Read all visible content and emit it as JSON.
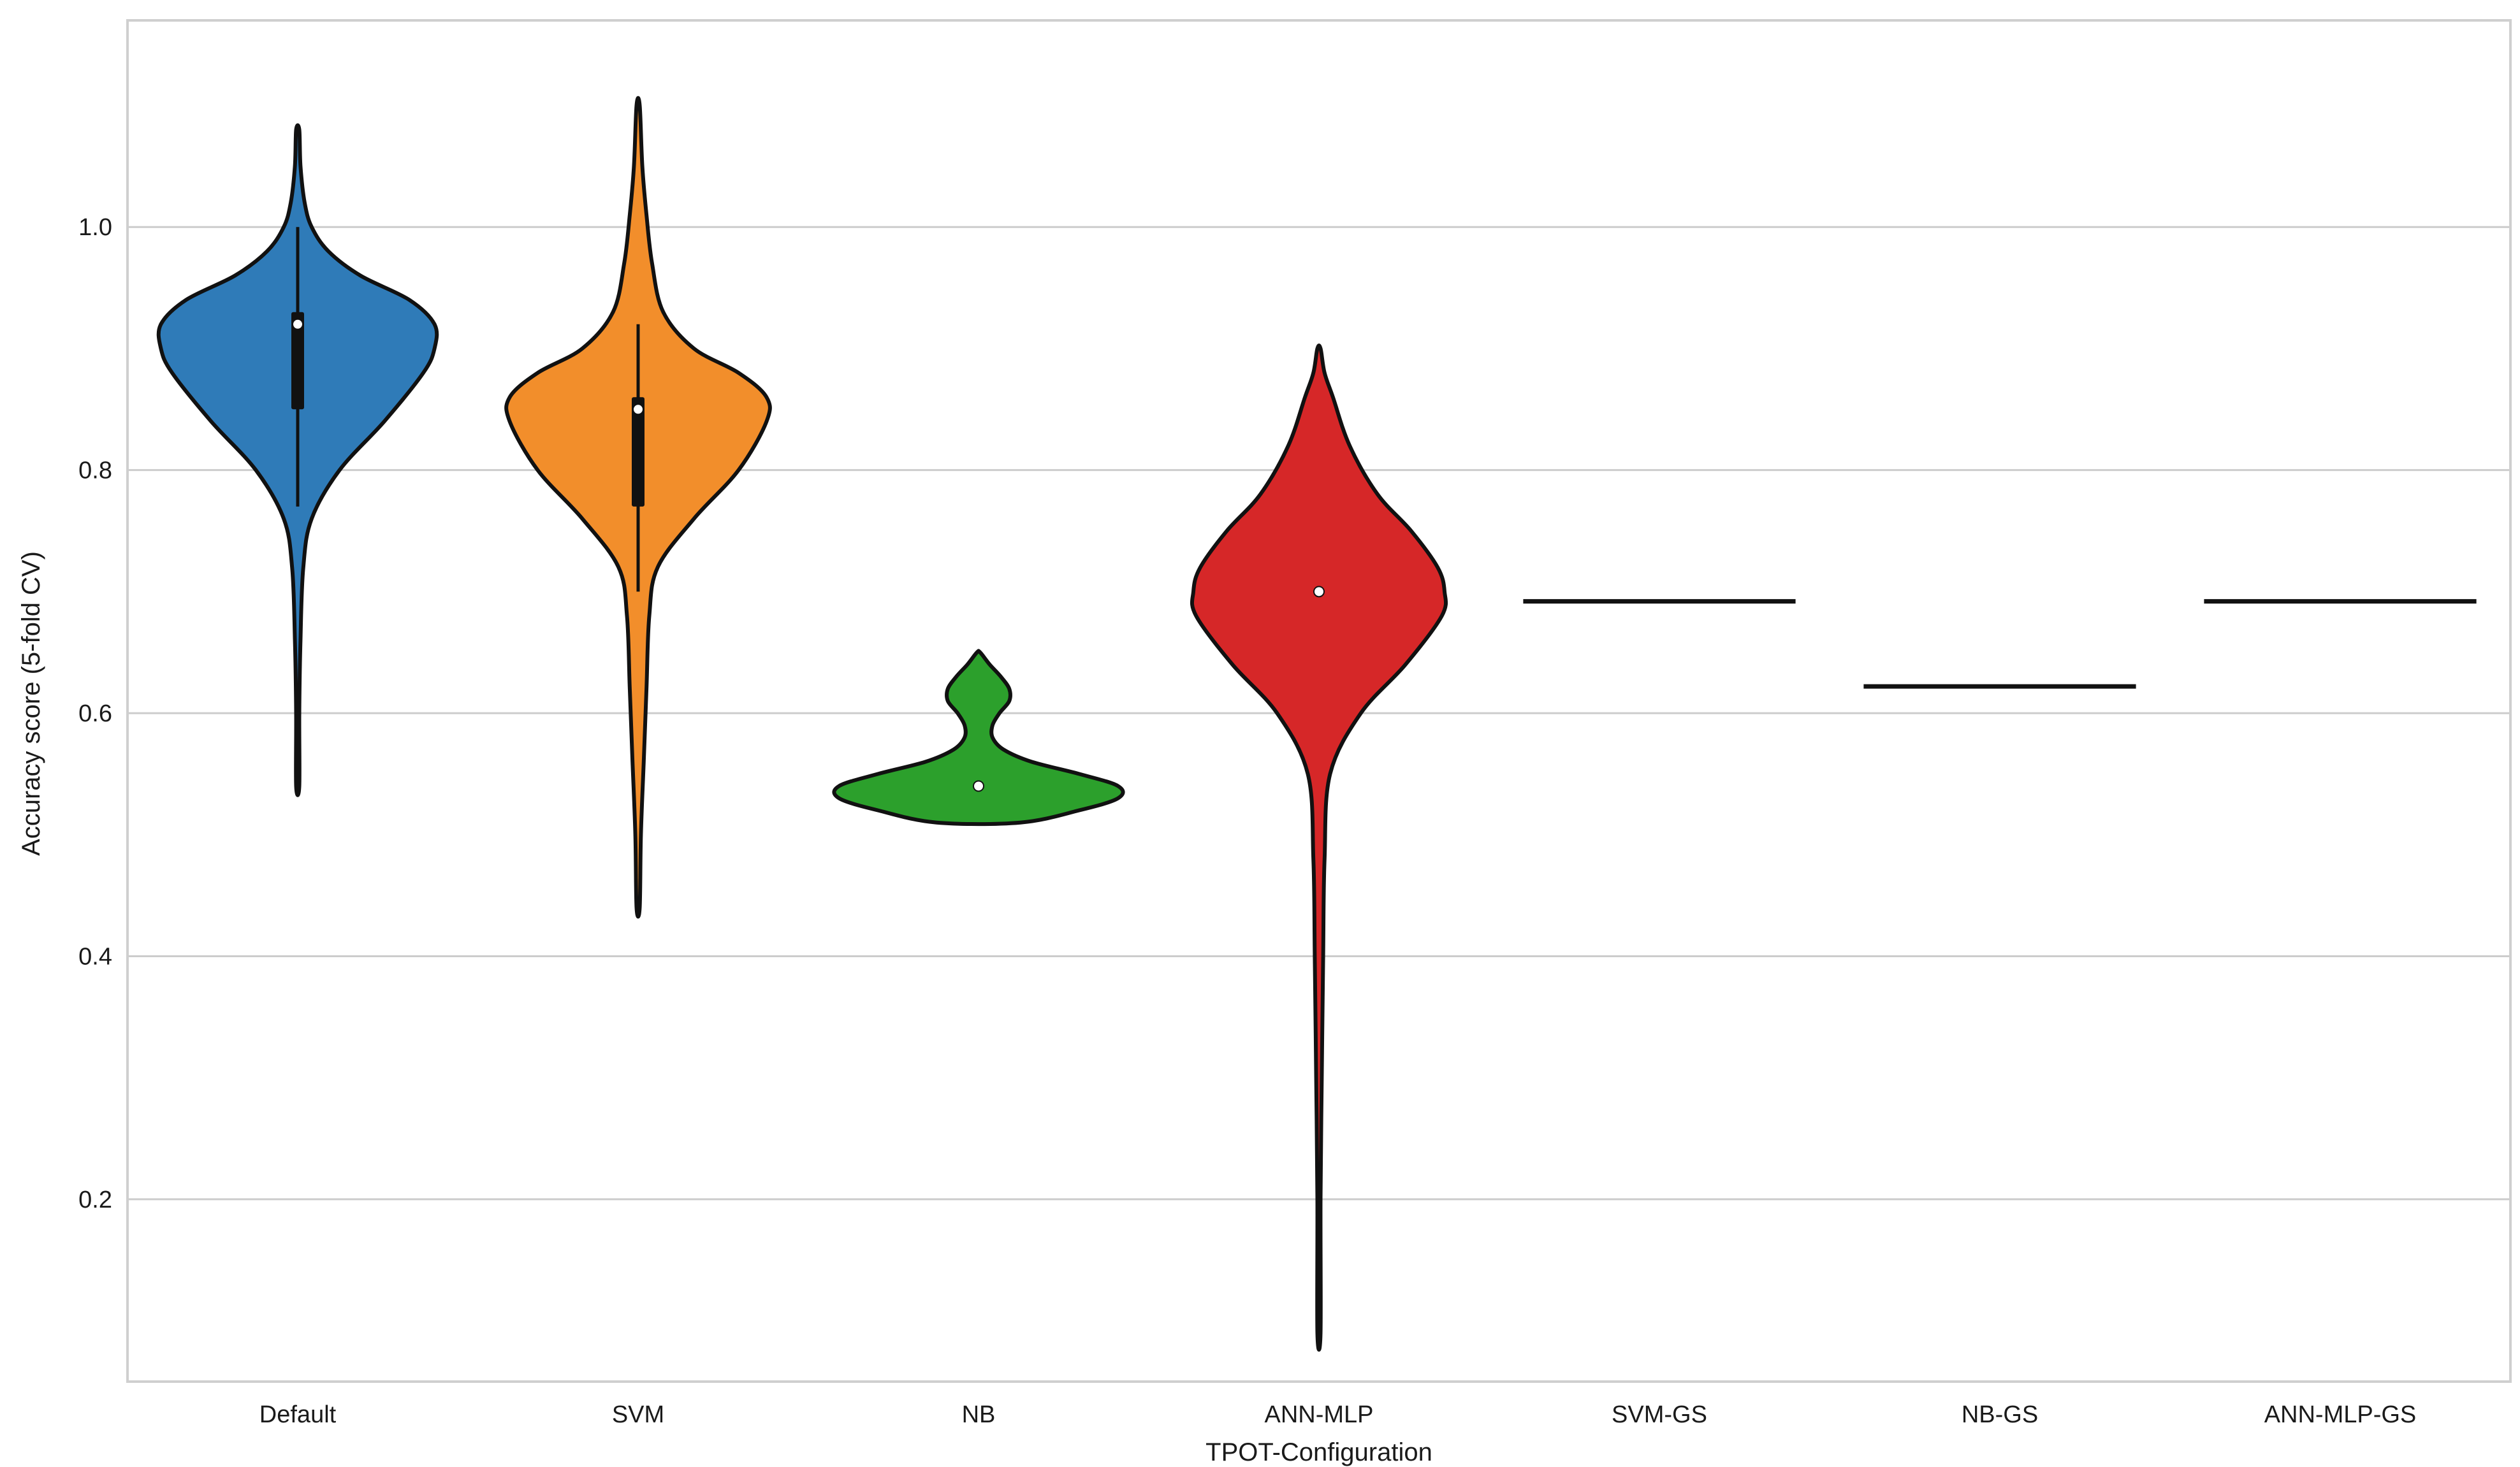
{
  "chart_data": {
    "type": "violin",
    "xlabel": "TPOT-Configuration",
    "ylabel": "Accuracy score (5-fold CV)",
    "ylim": [
      0.05,
      1.17
    ],
    "yticks": [
      0.2,
      0.4,
      0.6,
      0.8,
      1.0
    ],
    "ytick_labels": [
      "0.2",
      "0.4",
      "0.6",
      "0.8",
      "1.0"
    ],
    "grid": "horizontal",
    "categories": [
      "Default",
      "SVM",
      "NB",
      "ANN-MLP",
      "SVM-GS",
      "NB-GS",
      "ANN-MLP-GS"
    ],
    "series": [
      {
        "category": "Default",
        "color": "#2f7bb8",
        "min": 0.54,
        "max": 1.08,
        "q1": 0.85,
        "median": 0.92,
        "q3": 0.93,
        "whisker_low": 0.77,
        "whisker_high": 1.0,
        "density": [
          [
            0.54,
            0.0
          ],
          [
            0.6,
            0.01
          ],
          [
            0.66,
            0.02
          ],
          [
            0.72,
            0.04
          ],
          [
            0.76,
            0.1
          ],
          [
            0.8,
            0.3
          ],
          [
            0.84,
            0.62
          ],
          [
            0.88,
            0.9
          ],
          [
            0.9,
            0.98
          ],
          [
            0.92,
            0.98
          ],
          [
            0.94,
            0.8
          ],
          [
            0.96,
            0.45
          ],
          [
            0.98,
            0.22
          ],
          [
            1.0,
            0.1
          ],
          [
            1.02,
            0.05
          ],
          [
            1.05,
            0.02
          ],
          [
            1.08,
            0.0
          ]
        ]
      },
      {
        "category": "SVM",
        "color": "#f28e2b",
        "min": 0.44,
        "max": 1.1,
        "q1": 0.77,
        "median": 0.85,
        "q3": 0.86,
        "whisker_low": 0.7,
        "whisker_high": 0.92,
        "density": [
          [
            0.44,
            0.0
          ],
          [
            0.5,
            0.02
          ],
          [
            0.56,
            0.04
          ],
          [
            0.62,
            0.06
          ],
          [
            0.68,
            0.08
          ],
          [
            0.72,
            0.14
          ],
          [
            0.76,
            0.4
          ],
          [
            0.8,
            0.72
          ],
          [
            0.84,
            0.92
          ],
          [
            0.86,
            0.92
          ],
          [
            0.88,
            0.72
          ],
          [
            0.9,
            0.4
          ],
          [
            0.93,
            0.18
          ],
          [
            0.97,
            0.1
          ],
          [
            1.01,
            0.06
          ],
          [
            1.05,
            0.03
          ],
          [
            1.1,
            0.0
          ]
        ]
      },
      {
        "category": "NB",
        "color": "#2ca02c",
        "min": 0.51,
        "max": 0.65,
        "q1": 0.54,
        "median": 0.54,
        "q3": 0.54,
        "whisker_low": 0.54,
        "whisker_high": 0.54,
        "density": [
          [
            0.51,
            0.3
          ],
          [
            0.52,
            0.72
          ],
          [
            0.53,
            1.0
          ],
          [
            0.54,
            1.0
          ],
          [
            0.55,
            0.72
          ],
          [
            0.56,
            0.38
          ],
          [
            0.57,
            0.18
          ],
          [
            0.58,
            0.1
          ],
          [
            0.59,
            0.1
          ],
          [
            0.6,
            0.15
          ],
          [
            0.61,
            0.22
          ],
          [
            0.62,
            0.22
          ],
          [
            0.63,
            0.16
          ],
          [
            0.64,
            0.08
          ],
          [
            0.65,
            0.0
          ]
        ]
      },
      {
        "category": "ANN-MLP",
        "color": "#d62728",
        "min": 0.09,
        "max": 0.9,
        "q1": 0.7,
        "median": 0.7,
        "q3": 0.7,
        "whisker_low": 0.7,
        "whisker_high": 0.7,
        "density": [
          [
            0.09,
            0.0
          ],
          [
            0.2,
            0.01
          ],
          [
            0.3,
            0.02
          ],
          [
            0.4,
            0.03
          ],
          [
            0.48,
            0.04
          ],
          [
            0.55,
            0.08
          ],
          [
            0.6,
            0.3
          ],
          [
            0.64,
            0.62
          ],
          [
            0.68,
            0.88
          ],
          [
            0.7,
            0.9
          ],
          [
            0.72,
            0.85
          ],
          [
            0.75,
            0.66
          ],
          [
            0.78,
            0.42
          ],
          [
            0.82,
            0.22
          ],
          [
            0.86,
            0.1
          ],
          [
            0.88,
            0.04
          ],
          [
            0.9,
            0.0
          ]
        ]
      },
      {
        "category": "SVM-GS",
        "color": "#111111",
        "constant": 0.692
      },
      {
        "category": "NB-GS",
        "color": "#111111",
        "constant": 0.622
      },
      {
        "category": "ANN-MLP-GS",
        "color": "#111111",
        "constant": 0.692
      }
    ]
  }
}
